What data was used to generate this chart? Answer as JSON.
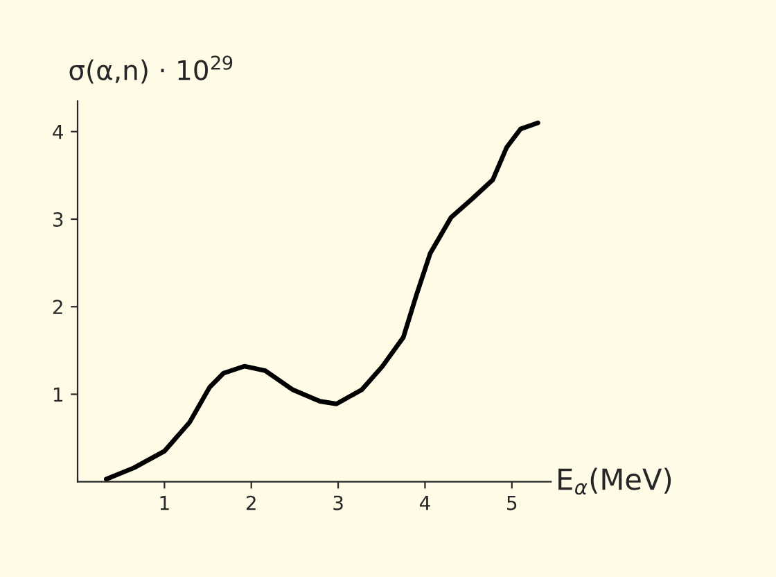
{
  "chart_data": {
    "type": "line",
    "ylabel": "σ(α,n) · 10$^{29}$",
    "xlabel": "E$_{α}$(MeV)",
    "x": [
      0.33,
      0.65,
      1.0,
      1.29,
      1.52,
      1.68,
      1.92,
      2.16,
      2.48,
      2.79,
      2.98,
      3.27,
      3.51,
      3.75,
      3.9,
      4.06,
      4.3,
      4.54,
      4.78,
      4.94,
      5.1,
      5.3
    ],
    "series": [
      {
        "color": "#000000",
        "values": [
          0.03,
          0.16,
          0.35,
          0.68,
          1.08,
          1.24,
          1.32,
          1.27,
          1.05,
          0.92,
          0.89,
          1.05,
          1.32,
          1.65,
          2.13,
          2.61,
          3.02,
          3.23,
          3.45,
          3.82,
          4.03,
          4.1
        ]
      }
    ],
    "xlim": [
      0,
      5.45
    ],
    "ylim": [
      0,
      4.35
    ],
    "xticks": [
      1,
      2,
      3,
      4,
      5
    ],
    "yticks": [
      1,
      2,
      3,
      4
    ],
    "grid": false,
    "legend": false,
    "marker": "none",
    "line_style": "solid"
  }
}
